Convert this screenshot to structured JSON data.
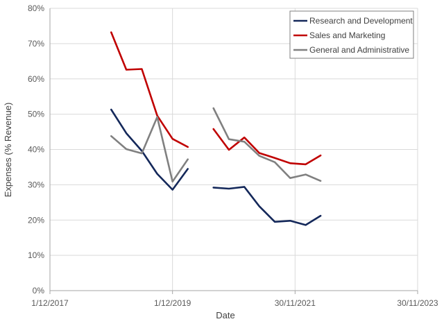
{
  "chart_data": {
    "type": "line",
    "title": "",
    "xlabel": "Date",
    "ylabel": "Expenses (% Revenue)",
    "x_type": "date",
    "xlim": [
      "2017-12-01",
      "2023-11-30"
    ],
    "ylim": [
      0,
      80
    ],
    "x_ticks": [
      "2017-12-01",
      "2019-12-01",
      "2021-11-30",
      "2023-11-30"
    ],
    "x_tick_labels": [
      "1/12/2017",
      "1/12/2019",
      "30/11/2021",
      "30/11/2023"
    ],
    "y_ticks": [
      0,
      10,
      20,
      30,
      40,
      50,
      60,
      70,
      80
    ],
    "y_tick_labels": [
      "0%",
      "10%",
      "20%",
      "30%",
      "40%",
      "50%",
      "60%",
      "70%",
      "80%"
    ],
    "grid": {
      "x": true,
      "y": true
    },
    "legend_position": "top-right",
    "series": [
      {
        "name": "Research and Development",
        "color": "#14285a",
        "segments": [
          {
            "x": [
              "2018-12-01",
              "2019-03-01",
              "2019-06-01",
              "2019-09-01",
              "2019-12-01",
              "2020-03-01"
            ],
            "y": [
              51.3,
              44.6,
              39.6,
              33.1,
              28.6,
              34.5
            ]
          },
          {
            "x": [
              "2020-08-01",
              "2020-11-01",
              "2021-02-01",
              "2021-05-01",
              "2021-08-01",
              "2021-11-01",
              "2022-02-01",
              "2022-05-01"
            ],
            "y": [
              29.2,
              28.9,
              29.4,
              23.9,
              19.5,
              19.8,
              18.6,
              21.2
            ]
          }
        ]
      },
      {
        "name": "Sales and Marketing",
        "color": "#c00000",
        "segments": [
          {
            "x": [
              "2018-12-01",
              "2019-03-01",
              "2019-06-01",
              "2019-09-01",
              "2019-12-01",
              "2020-03-01"
            ],
            "y": [
              73.2,
              62.6,
              62.8,
              49.6,
              43.0,
              40.7
            ]
          },
          {
            "x": [
              "2020-08-01",
              "2020-11-01",
              "2021-02-01",
              "2021-05-01",
              "2021-08-01",
              "2021-11-01",
              "2022-02-01",
              "2022-05-01"
            ],
            "y": [
              45.8,
              39.9,
              43.4,
              39.0,
              37.6,
              36.1,
              35.8,
              38.3
            ]
          }
        ]
      },
      {
        "name": "General and Administrative",
        "color": "#808080",
        "segments": [
          {
            "x": [
              "2018-12-01",
              "2019-03-01",
              "2019-06-01",
              "2019-09-01",
              "2019-12-01",
              "2020-03-01"
            ],
            "y": [
              43.8,
              40.1,
              38.9,
              49.2,
              30.9,
              37.2
            ]
          },
          {
            "x": [
              "2020-08-01",
              "2020-11-01",
              "2021-02-01",
              "2021-05-01",
              "2021-08-01",
              "2021-11-01",
              "2022-02-01",
              "2022-05-01"
            ],
            "y": [
              51.7,
              42.9,
              42.2,
              38.2,
              36.4,
              31.9,
              32.9,
              31.1
            ]
          }
        ]
      }
    ]
  }
}
